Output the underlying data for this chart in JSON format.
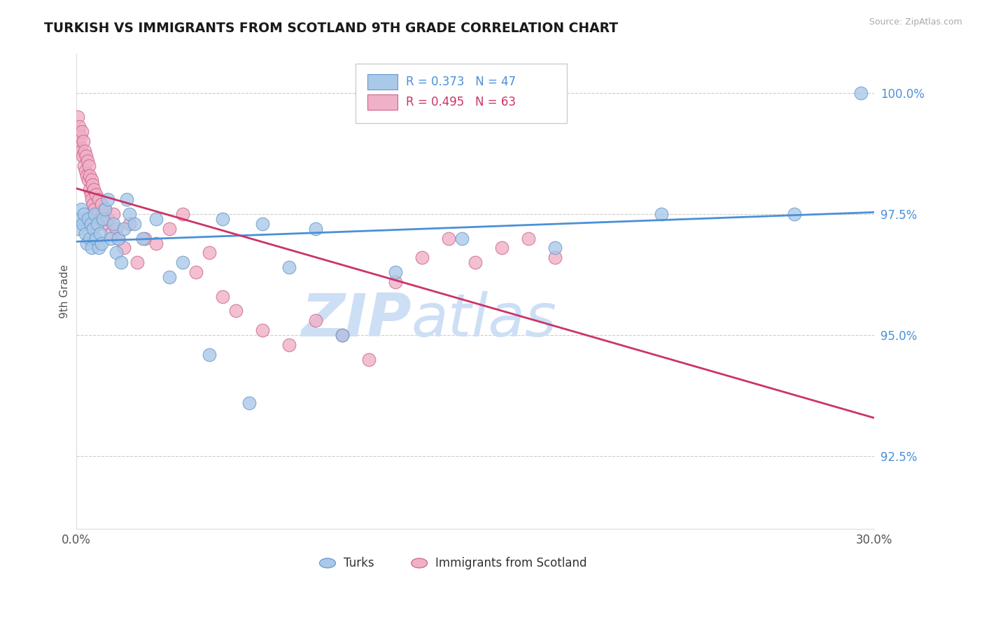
{
  "title": "TURKISH VS IMMIGRANTS FROM SCOTLAND 9TH GRADE CORRELATION CHART",
  "source_text": "Source: ZipAtlas.com",
  "ylabel": "9th Grade",
  "xmin": 0.0,
  "xmax": 30.0,
  "ymin": 91.0,
  "ymax": 100.8,
  "yticks": [
    92.5,
    95.0,
    97.5,
    100.0
  ],
  "ytick_labels": [
    "92.5%",
    "95.0%",
    "97.5%",
    "100.0%"
  ],
  "legend_r1": "R = 0.373   N = 47",
  "legend_r2": "R = 0.495   N = 63",
  "turks_color": "#aac8e8",
  "turks_edge": "#6699cc",
  "scotland_color": "#f0b0c8",
  "scotland_edge": "#cc6688",
  "trend_blue": "#4a90d9",
  "trend_pink": "#cc3366",
  "watermark_zip": "ZIP",
  "watermark_atlas": "atlas",
  "watermark_color_zip": "#c8ddf5",
  "watermark_color_atlas": "#c8ddf5",
  "background_color": "#ffffff",
  "turks_x": [
    0.1,
    0.15,
    0.2,
    0.25,
    0.3,
    0.35,
    0.4,
    0.45,
    0.5,
    0.55,
    0.6,
    0.65,
    0.7,
    0.75,
    0.8,
    0.85,
    0.9,
    0.95,
    1.0,
    1.1,
    1.2,
    1.3,
    1.4,
    1.5,
    1.6,
    1.7,
    1.8,
    1.9,
    2.0,
    2.2,
    2.5,
    3.0,
    3.5,
    4.0,
    5.0,
    6.5,
    8.0,
    10.0,
    12.0,
    14.5,
    18.0,
    22.0,
    27.0,
    29.5,
    5.5,
    7.0,
    9.0
  ],
  "turks_y": [
    97.2,
    97.4,
    97.6,
    97.3,
    97.5,
    97.1,
    96.9,
    97.4,
    97.0,
    97.3,
    96.8,
    97.2,
    97.5,
    97.0,
    97.3,
    96.8,
    97.1,
    96.9,
    97.4,
    97.6,
    97.8,
    97.0,
    97.3,
    96.7,
    97.0,
    96.5,
    97.2,
    97.8,
    97.5,
    97.3,
    97.0,
    97.4,
    96.2,
    96.5,
    94.6,
    93.6,
    96.4,
    95.0,
    96.3,
    97.0,
    96.8,
    97.5,
    97.5,
    100.0,
    97.4,
    97.3,
    97.2
  ],
  "scotland_x": [
    0.05,
    0.08,
    0.1,
    0.12,
    0.15,
    0.18,
    0.2,
    0.22,
    0.25,
    0.28,
    0.3,
    0.32,
    0.35,
    0.38,
    0.4,
    0.42,
    0.45,
    0.48,
    0.5,
    0.52,
    0.55,
    0.58,
    0.6,
    0.62,
    0.65,
    0.68,
    0.7,
    0.75,
    0.8,
    0.85,
    0.9,
    0.95,
    1.0,
    1.05,
    1.1,
    1.2,
    1.3,
    1.4,
    1.5,
    1.6,
    1.8,
    2.0,
    2.3,
    2.6,
    3.0,
    3.5,
    4.0,
    4.5,
    5.0,
    5.5,
    6.0,
    7.0,
    8.0,
    9.0,
    10.0,
    11.0,
    12.0,
    13.0,
    14.0,
    15.0,
    16.0,
    17.0,
    18.0
  ],
  "scotland_y": [
    99.5,
    99.2,
    99.0,
    99.3,
    98.9,
    99.1,
    98.8,
    99.2,
    98.7,
    99.0,
    98.5,
    98.8,
    98.4,
    98.7,
    98.3,
    98.6,
    98.2,
    98.5,
    98.0,
    98.3,
    97.9,
    98.2,
    97.8,
    98.1,
    97.7,
    98.0,
    97.6,
    97.9,
    97.5,
    97.8,
    97.4,
    97.7,
    97.5,
    97.3,
    97.6,
    97.4,
    97.1,
    97.5,
    97.2,
    97.0,
    96.8,
    97.3,
    96.5,
    97.0,
    96.9,
    97.2,
    97.5,
    96.3,
    96.7,
    95.8,
    95.5,
    95.1,
    94.8,
    95.3,
    95.0,
    94.5,
    96.1,
    96.6,
    97.0,
    96.5,
    96.8,
    97.0,
    96.6
  ]
}
